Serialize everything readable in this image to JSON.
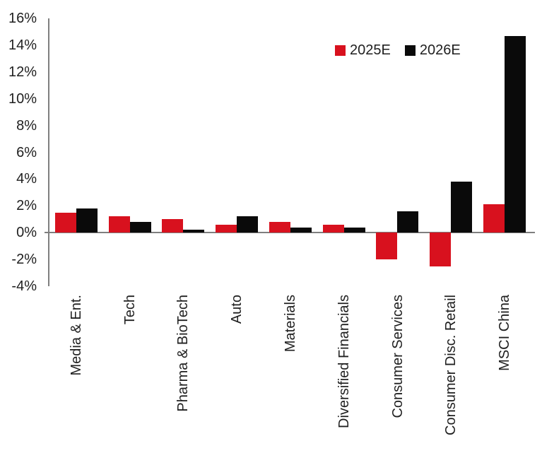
{
  "colors": {
    "background": "#ffffff",
    "axis": "#7f7f7f",
    "text": "#1f1f1f",
    "series_2025e": "#d8111e",
    "series_2026e": "#0a0a0a"
  },
  "chart_data": {
    "type": "bar",
    "title": "",
    "xlabel": "",
    "ylabel": "",
    "categories": [
      "Media & Ent.",
      "Tech",
      "Pharma & BioTech",
      "Auto",
      "Materials",
      "Diversified Financials",
      "Consumer Services",
      "Consumer Disc. Retail",
      "MSCI China"
    ],
    "series": [
      {
        "name": "2025E",
        "color": "#d8111e",
        "values": [
          1.5,
          1.2,
          1.0,
          0.6,
          0.8,
          0.6,
          -2.0,
          -2.5,
          2.1
        ]
      },
      {
        "name": "2026E",
        "color": "#0a0a0a",
        "values": [
          1.8,
          0.8,
          0.2,
          1.2,
          0.4,
          0.4,
          1.6,
          3.8,
          14.7
        ]
      }
    ],
    "value_unit": "percent",
    "ylim": [
      -4,
      16
    ],
    "ytick_step": 2,
    "yticks": [
      "16%",
      "14%",
      "12%",
      "10%",
      "8%",
      "6%",
      "4%",
      "2%",
      "0%",
      "-2%",
      "-4%"
    ],
    "grid": false,
    "legend_position": "top-right",
    "x_label_rotation": -90
  }
}
